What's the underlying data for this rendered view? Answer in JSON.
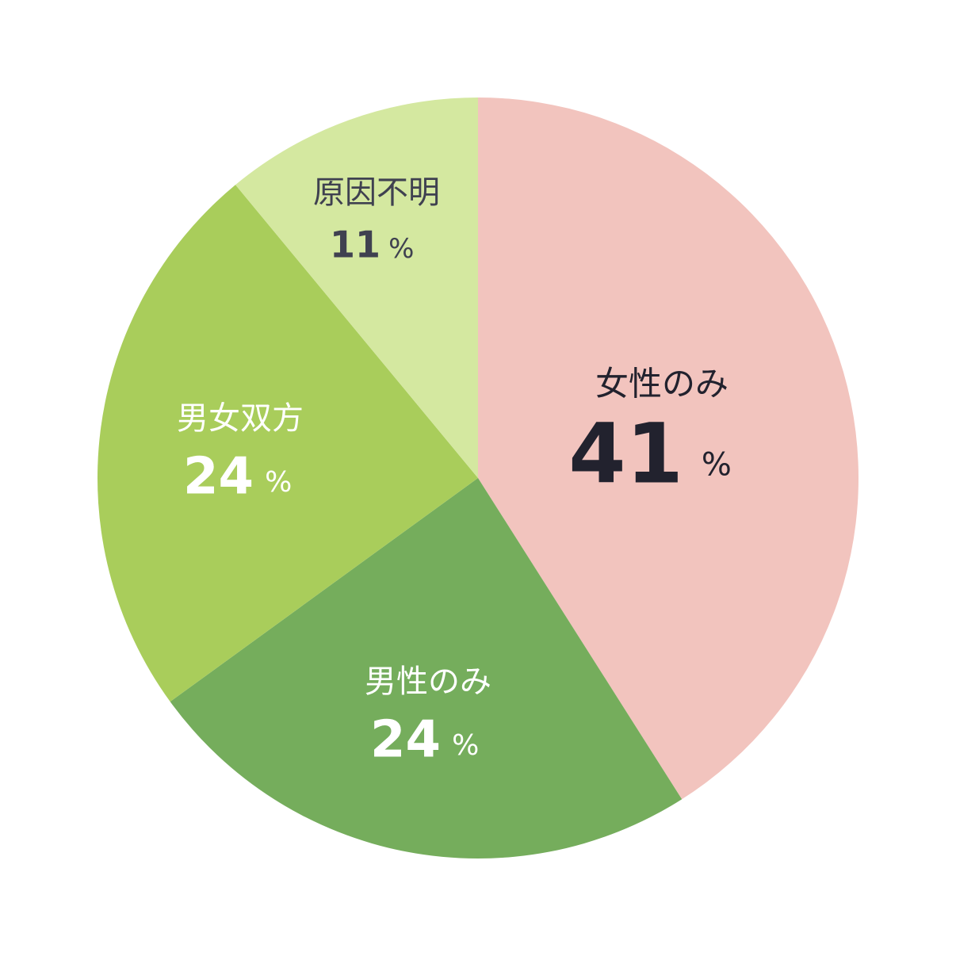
{
  "chart_data": {
    "type": "pie",
    "categories": [
      "女性のみ",
      "男性のみ",
      "男女双方",
      "原因不明"
    ],
    "values": [
      41,
      24,
      24,
      11
    ],
    "colors": [
      "#f2c4be",
      "#75ad5c",
      "#a9cd5b",
      "#d4e8a0"
    ],
    "unit": "%"
  }
}
